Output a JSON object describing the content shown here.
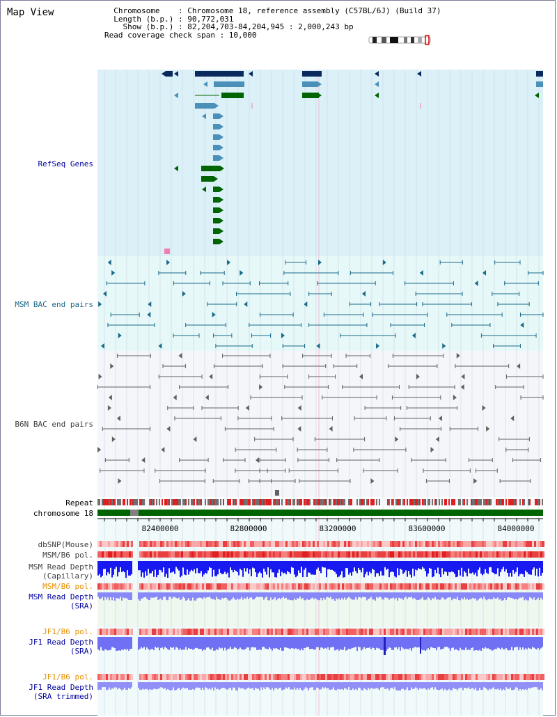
{
  "header": {
    "title": "Map View",
    "info_lines": [
      "  Chromosome    : Chromosome 18, reference assembly (C57BL/6J) (Build 37)",
      "  Length (b.p.) : 90,772,031",
      "    Show (b.p.) : 82,204,703-84,204,945 : 2,000,243 bp",
      "Read coverage check span : 10,000"
    ]
  },
  "tracks": {
    "refseq": "RefSeq Genes",
    "msm_bac": "MSM BAC end pairs",
    "b6n_bac": "B6N BAC end pairs",
    "repeat": "Repeat",
    "chromosome": "chromosome 18",
    "dbsnp": "dbSNP(Mouse)",
    "msm_b6_pol_1": "MSM/B6 pol.",
    "msm_depth_cap_1": "MSM Read Depth",
    "msm_depth_cap_2": "(Capillary)",
    "msm_b6_pol_2": "MSM/B6 pol.",
    "msm_depth_sra_1": "MSM Read Depth",
    "msm_depth_sra_2": "(SRA)",
    "jf1_b6_pol_1": "JF1/B6 pol.",
    "jf1_depth_sra_1": "JF1 Read Depth",
    "jf1_depth_sra_2": "(SRA)",
    "jf1_b6_pol_2": "JF1/B6 pol.",
    "jf1_depth_trim_1": "JF1 Read Depth",
    "jf1_depth_trim_2": "(SRA trimmed)"
  },
  "ruler": {
    "ticks": [
      "82400000",
      "82800000",
      "83200000",
      "83600000",
      "84000000"
    ]
  },
  "colors": {
    "refseq_bg": "#dcf0f8",
    "msm_bg": "#e6f8f8",
    "b6n_bg": "#f4f6fa",
    "dark_blue": "#0a2a5e",
    "mid_blue": "#4a90b8",
    "green": "#006400",
    "teal": "#1a6a8a",
    "gray": "#606060",
    "depth_blue": "#1010ff",
    "depth_light": "#8080ff",
    "pol_red": "#e84040",
    "orange": "#e89000",
    "navy_text": "#0000a0"
  }
}
